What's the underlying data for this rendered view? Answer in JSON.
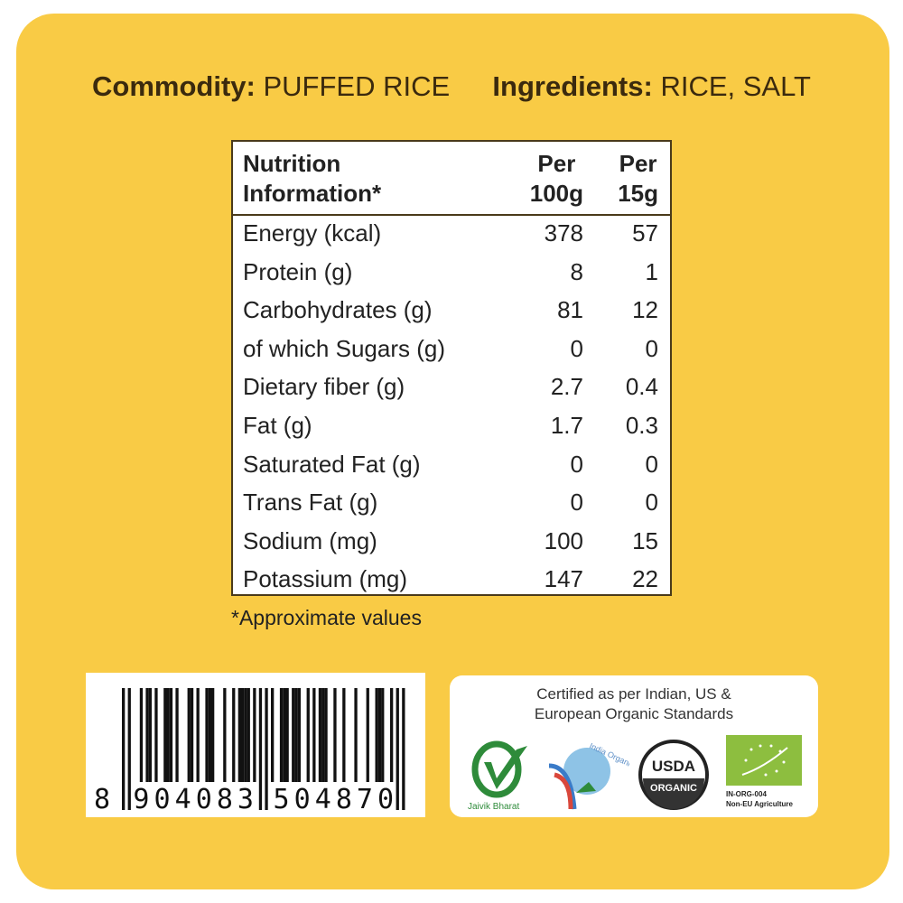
{
  "header": {
    "commodity_label": "Commodity:",
    "commodity_value": "PUFFED RICE",
    "ingredients_label": "Ingredients:",
    "ingredients_value": "RICE, SALT"
  },
  "nutrition": {
    "col_headers": [
      "Nutrition\nInformation*",
      "Per\n100g",
      "Per\n15g"
    ],
    "rows": [
      {
        "name": "Energy (kcal)",
        "per100": "378",
        "per15": "57"
      },
      {
        "name": "Protein (g)",
        "per100": "8",
        "per15": "1"
      },
      {
        "name": "Carbohydrates (g)",
        "per100": "81",
        "per15": "12"
      },
      {
        "name": "of which Sugars (g)",
        "per100": "0",
        "per15": "0"
      },
      {
        "name": "Dietary fiber (g)",
        "per100": "2.7",
        "per15": "0.4"
      },
      {
        "name": "Fat (g)",
        "per100": "1.7",
        "per15": "0.3"
      },
      {
        "name": "Saturated Fat (g)",
        "per100": "0",
        "per15": "0"
      },
      {
        "name": "Trans Fat (g)",
        "per100": "0",
        "per15": "0"
      },
      {
        "name": "Sodium (mg)",
        "per100": "100",
        "per15": "15"
      },
      {
        "name": "Potassium (mg)",
        "per100": "147",
        "per15": "22"
      }
    ],
    "footnote": "*Approximate values"
  },
  "barcode": {
    "number": "8904083504870"
  },
  "certification": {
    "text_line1": "Certified as per Indian, US &",
    "text_line2": "European Organic Standards",
    "jaivik": "Jaivik Bharat",
    "india_organic": "India Organic",
    "usda_top": "USDA",
    "usda_bottom": "ORGANIC",
    "eu_code": "IN-ORG-004",
    "eu_sub": "Non-EU Agriculture"
  },
  "colors": {
    "background": "#F9CB45",
    "text": "#3b2a0e",
    "eu_green": "#8DBE3F",
    "jaivik_green": "#2E8B3A"
  }
}
